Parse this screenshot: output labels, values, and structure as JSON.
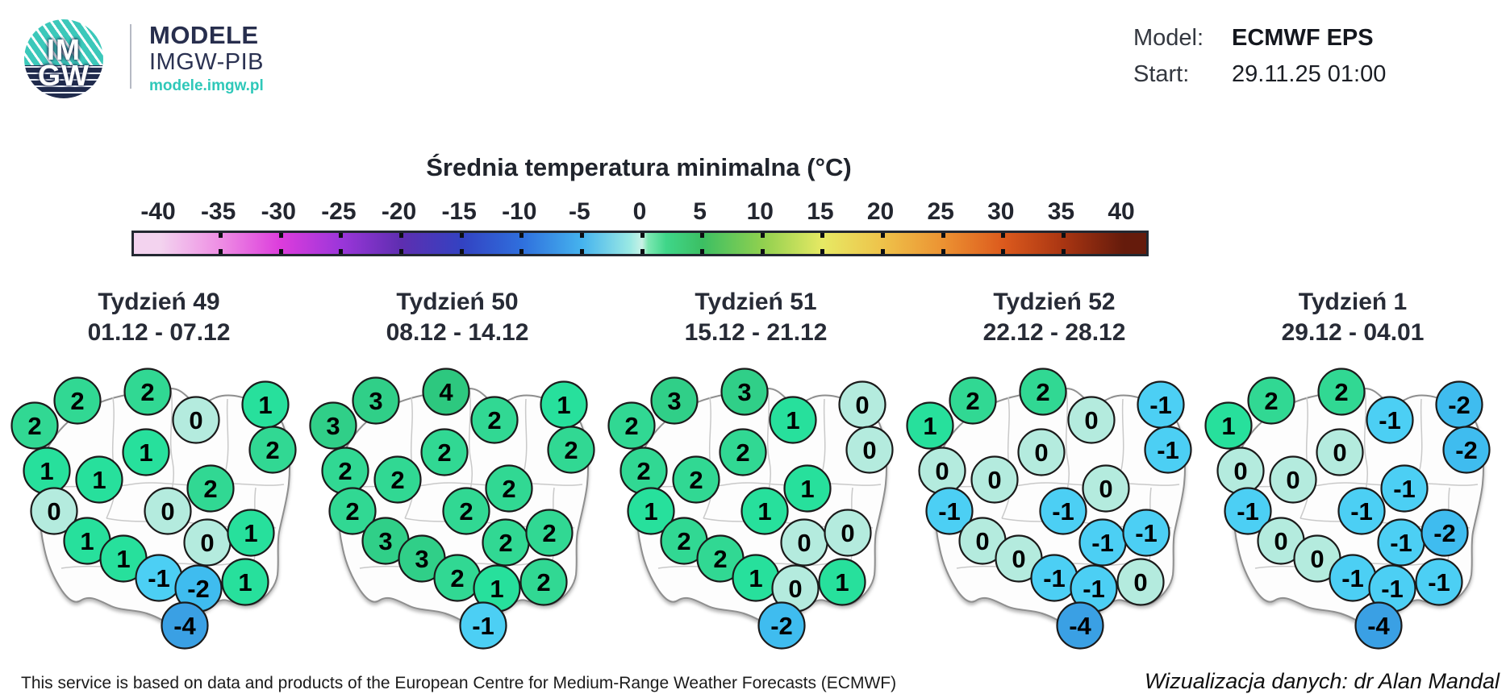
{
  "header": {
    "logo_line1": "IM",
    "logo_line2": "GW",
    "brand_title": "MODELE",
    "brand_subtitle": "IMGW-PIB",
    "brand_url": "modele.imgw.pl",
    "model_label": "Model:",
    "model_value": "ECMWF EPS",
    "start_label": "Start:",
    "start_value": "29.11.25 01:00"
  },
  "footer": {
    "note": "This service is based on data and products of the European Centre for Medium-Range Weather Forecasts (ECMWF)",
    "credit": "Wizualizacja danych: dr Alan Mandal"
  },
  "chart_data": {
    "type": "heatmap",
    "title": "Średnia temperatura minimalna (°C)",
    "unit": "°C",
    "region": "Poland, one circle per province (plus mountain points)",
    "colorbar_ticks": [
      -40,
      -35,
      -30,
      -25,
      -20,
      -15,
      -10,
      -5,
      0,
      5,
      10,
      15,
      20,
      25,
      30,
      35,
      40
    ],
    "gradient_stops": [
      {
        "v": -40,
        "color": "#f3d3ef"
      },
      {
        "v": -35,
        "color": "#ee8de4"
      },
      {
        "v": -30,
        "color": "#dc3cdc"
      },
      {
        "v": -25,
        "color": "#9b36da"
      },
      {
        "v": -20,
        "color": "#5e2eb0"
      },
      {
        "v": -15,
        "color": "#3342c2"
      },
      {
        "v": -10,
        "color": "#2f6fdd"
      },
      {
        "v": -5,
        "color": "#45b3ee"
      },
      {
        "v": -1,
        "color": "#9ae9e4"
      },
      {
        "v": 0,
        "color": "#c9f2e6"
      },
      {
        "v": 0.5,
        "color": "#7ce7b2"
      },
      {
        "v": 2,
        "color": "#3fd689"
      },
      {
        "v": 5,
        "color": "#3cbf63"
      },
      {
        "v": 10,
        "color": "#90d04f"
      },
      {
        "v": 15,
        "color": "#e7e964"
      },
      {
        "v": 20,
        "color": "#eec24a"
      },
      {
        "v": 25,
        "color": "#ec9232"
      },
      {
        "v": 30,
        "color": "#dc5a1d"
      },
      {
        "v": 35,
        "color": "#a93512"
      },
      {
        "v": 40,
        "color": "#651b0c"
      }
    ],
    "value_colors": {
      "4": "#2dc87f",
      "3": "#30cf88",
      "2": "#31d893",
      "1": "#27e09c",
      "0": "#b4ebde",
      "-1": "#4ccff4",
      "-2": "#3fbcef",
      "-4": "#3aa0e4"
    },
    "point_positions": [
      [
        31,
        73
      ],
      [
        84,
        42
      ],
      [
        171,
        31
      ],
      [
        231,
        66
      ],
      [
        317,
        47
      ],
      [
        46,
        129
      ],
      [
        111,
        140
      ],
      [
        169,
        106
      ],
      [
        326,
        103
      ],
      [
        55,
        179
      ],
      [
        196,
        179
      ],
      [
        249,
        151
      ],
      [
        96,
        216
      ],
      [
        245,
        218
      ],
      [
        299,
        206
      ],
      [
        141,
        238
      ],
      [
        185,
        262
      ],
      [
        234,
        275
      ],
      [
        292,
        267
      ],
      [
        217,
        321
      ]
    ],
    "weeks": [
      {
        "week_label": "Tydzień 49",
        "date_range": "01.12 - 07.12",
        "values": [
          2,
          2,
          2,
          0,
          1,
          1,
          1,
          1,
          2,
          0,
          0,
          2,
          1,
          0,
          1,
          1,
          -1,
          -2,
          1,
          -4
        ]
      },
      {
        "week_label": "Tydzień 50",
        "date_range": "08.12 - 14.12",
        "values": [
          3,
          3,
          4,
          2,
          1,
          2,
          2,
          2,
          2,
          2,
          2,
          2,
          3,
          2,
          2,
          3,
          2,
          1,
          2,
          -1
        ]
      },
      {
        "week_label": "Tydzień 51",
        "date_range": "15.12 - 21.12",
        "values": [
          2,
          3,
          3,
          1,
          0,
          2,
          2,
          2,
          0,
          1,
          1,
          1,
          2,
          0,
          0,
          2,
          1,
          0,
          1,
          -2
        ]
      },
      {
        "week_label": "Tydzień 52",
        "date_range": "22.12 - 28.12",
        "values": [
          1,
          2,
          2,
          0,
          -1,
          0,
          0,
          0,
          -1,
          -1,
          -1,
          0,
          0,
          -1,
          -1,
          0,
          -1,
          -1,
          0,
          -4
        ]
      },
      {
        "week_label": "Tydzień 1",
        "date_range": "29.12 - 04.01",
        "values": [
          1,
          2,
          2,
          -1,
          -2,
          0,
          0,
          0,
          -2,
          -1,
          -1,
          -1,
          0,
          -1,
          -2,
          0,
          -1,
          -1,
          -1,
          -4
        ]
      }
    ]
  }
}
